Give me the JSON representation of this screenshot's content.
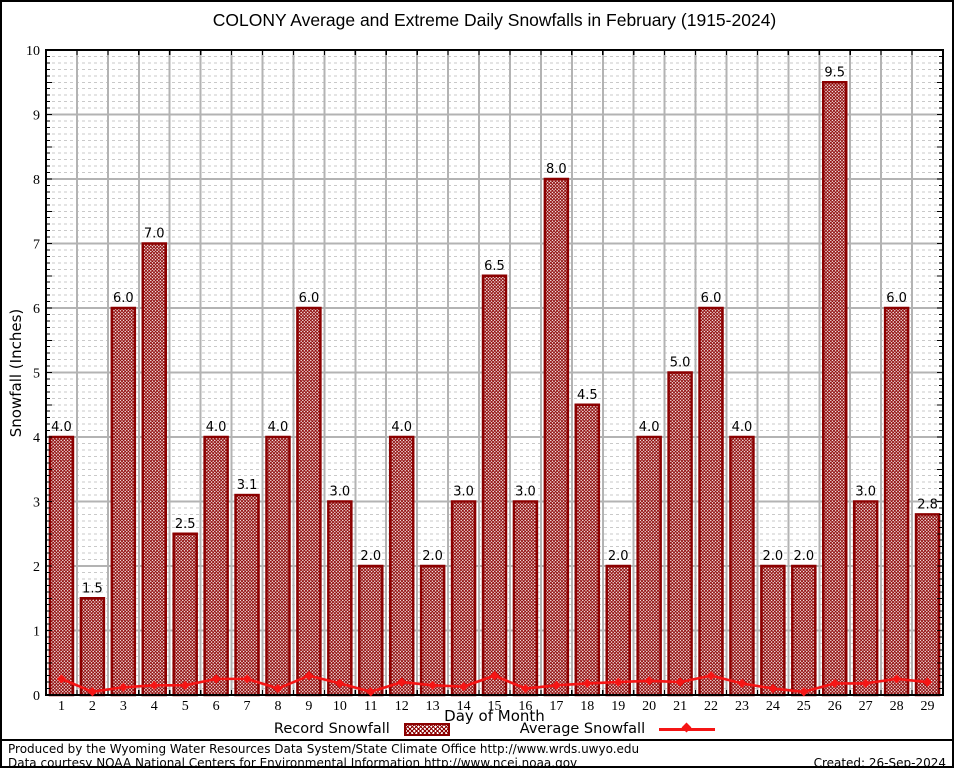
{
  "title": "COLONY Average and Extreme Daily Snowfalls in February (1915-2024)",
  "chart_data": {
    "type": "bar",
    "title": "COLONY Average and Extreme Daily Snowfalls in February (1915-2024)",
    "xlabel": "Day of Month",
    "ylabel": "Snowfall (Inches)",
    "ylim": [
      0,
      10
    ],
    "y_major_step": 1,
    "y_minor_step": 0.1,
    "grid": true,
    "legend_position": "bottom",
    "categories": [
      1,
      2,
      3,
      4,
      5,
      6,
      7,
      8,
      9,
      10,
      11,
      12,
      13,
      14,
      15,
      16,
      17,
      18,
      19,
      20,
      21,
      22,
      23,
      24,
      25,
      26,
      27,
      28,
      29
    ],
    "series": [
      {
        "name": "Record Snowfall",
        "type": "bar",
        "pattern": "crosshatch",
        "color": "#8b0000",
        "values": [
          4.0,
          1.5,
          6.0,
          7.0,
          2.5,
          4.0,
          3.1,
          4.0,
          6.0,
          3.0,
          2.0,
          4.0,
          2.0,
          3.0,
          6.5,
          3.0,
          8.0,
          4.5,
          2.0,
          4.0,
          5.0,
          6.0,
          4.0,
          2.0,
          2.0,
          9.5,
          3.0,
          6.0,
          2.8
        ]
      },
      {
        "name": "Average Snowfall",
        "type": "line",
        "marker": "diamond",
        "color": "#f51515",
        "values": [
          0.25,
          0.05,
          0.12,
          0.15,
          0.15,
          0.25,
          0.25,
          0.1,
          0.3,
          0.18,
          0.05,
          0.2,
          0.15,
          0.13,
          0.3,
          0.1,
          0.15,
          0.18,
          0.2,
          0.22,
          0.2,
          0.3,
          0.18,
          0.1,
          0.05,
          0.18,
          0.18,
          0.25,
          0.2
        ]
      }
    ]
  },
  "colors": {
    "bar_border": "#8b0000",
    "bar_hatch": "#8b0000",
    "average_line": "#f51515",
    "major_grid": "#b3b3b3",
    "minor_grid": "#c9c9c9",
    "axis": "#000000"
  },
  "footer": {
    "line1": "Produced by the Wyoming Water Resources Data System/State Climate Office http://www.wrds.uwyo.edu",
    "line2": "Data courtesy NOAA National Centers for Environmental Information http://www.ncei.noaa.gov",
    "created": "Created: 26-Sep-2024"
  }
}
